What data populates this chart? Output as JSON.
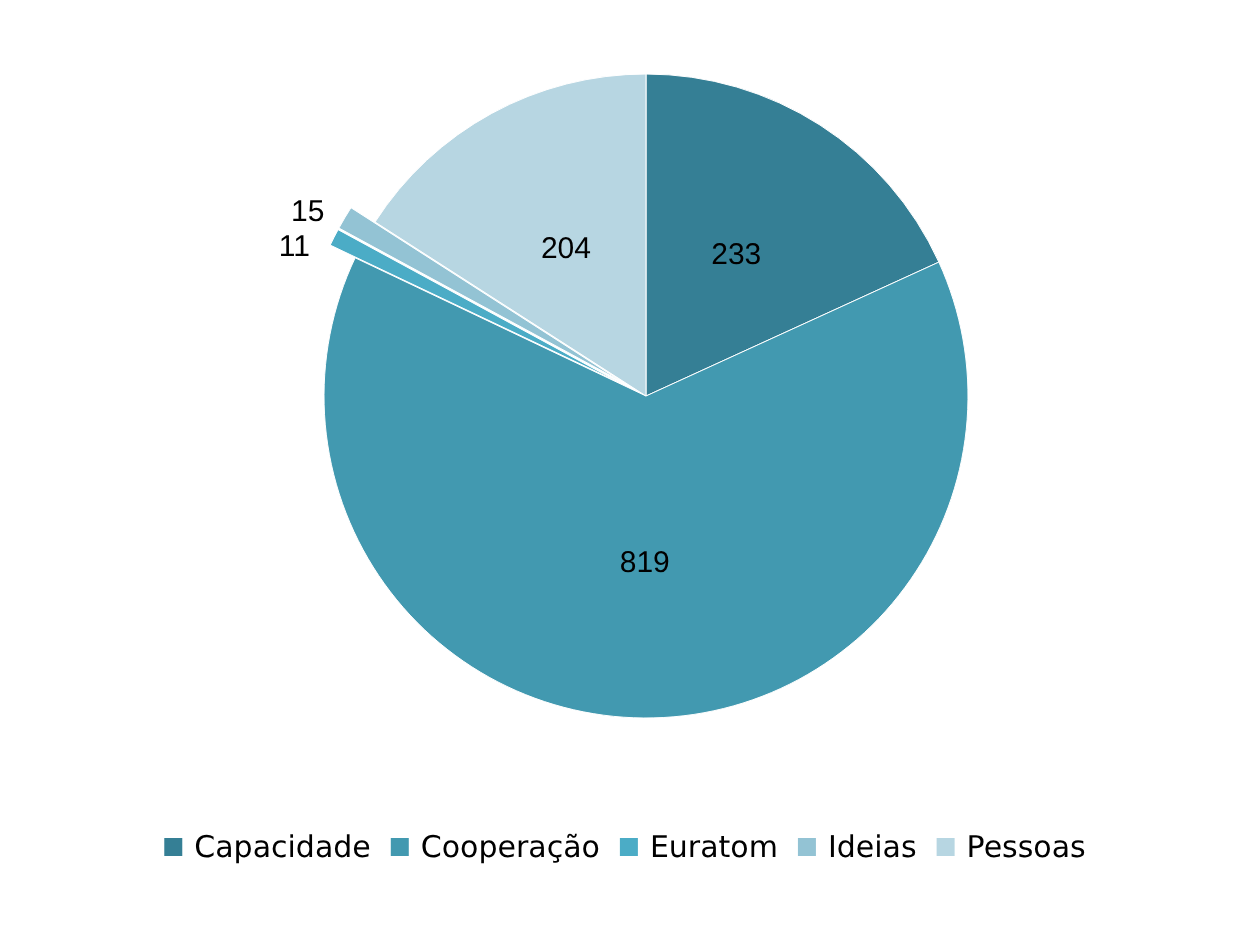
{
  "chart_data": {
    "type": "pie",
    "categories": [
      "Capacidade",
      "Cooperação",
      "Euratom",
      "Ideias",
      "Pessoas"
    ],
    "values": [
      233,
      819,
      11,
      15,
      204
    ],
    "colors": [
      "#357f95",
      "#4299b0",
      "#4bacc6",
      "#93c3d4",
      "#b7d6e2"
    ],
    "data_labels": true,
    "legend": "bottom"
  }
}
